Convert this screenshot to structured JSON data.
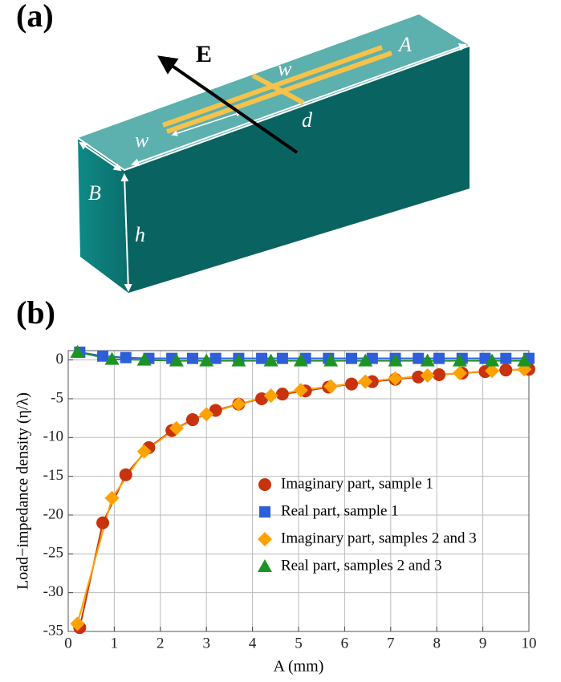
{
  "panel_a": {
    "label": "(a)",
    "labels": [
      "E",
      "A",
      "w",
      "d",
      "w",
      "B",
      "h"
    ]
  },
  "panel_b": {
    "label": "(b)"
  },
  "chart_data": {
    "type": "scatter",
    "x_label": "A (mm)",
    "y_label": "Load−impedance  density (η/λ)",
    "xlim": [
      0,
      10
    ],
    "ylim": [
      -35,
      1.2
    ],
    "xticks": [
      0,
      1,
      2,
      3,
      4,
      5,
      6,
      7,
      8,
      9,
      10
    ],
    "yticks": [
      -35,
      -30,
      -25,
      -20,
      -15,
      -10,
      -5,
      0
    ],
    "grid": true,
    "legend": "right",
    "series": [
      {
        "name": "Imaginary part, sample 1",
        "color": "#c8320c",
        "marker": "circle",
        "x": [
          0.25,
          0.75,
          1.25,
          1.75,
          2.25,
          2.7,
          3.2,
          3.7,
          4.2,
          4.65,
          5.15,
          5.65,
          6.15,
          6.6,
          7.1,
          7.6,
          8.05,
          8.55,
          9.05,
          9.5,
          10
        ],
        "values": [
          -34.5,
          -21,
          -14.8,
          -11.3,
          -9.1,
          -7.7,
          -6.5,
          -5.7,
          -5.0,
          -4.4,
          -4.0,
          -3.5,
          -3.1,
          -2.8,
          -2.5,
          -2.2,
          -1.9,
          -1.7,
          -1.5,
          -1.3,
          -1.2
        ]
      },
      {
        "name": "Real part, sample 1",
        "color": "#2f5fd8",
        "marker": "square",
        "x": [
          0.25,
          0.75,
          1.25,
          1.75,
          2.25,
          2.7,
          3.2,
          3.7,
          4.2,
          4.65,
          5.15,
          5.65,
          6.15,
          6.6,
          7.1,
          7.6,
          8.05,
          8.55,
          9.05,
          9.5,
          10
        ],
        "values": [
          1.0,
          0.5,
          0.3,
          0.2,
          0.2,
          0.2,
          0.2,
          0.2,
          0.2,
          0.2,
          0.2,
          0.2,
          0.2,
          0.2,
          0.2,
          0.2,
          0.2,
          0.2,
          0.2,
          0.2,
          0.2
        ]
      },
      {
        "name": "Imaginary part, samples 2 and 3",
        "color": "#ffa200",
        "marker": "diamond",
        "x": [
          0.2,
          0.95,
          1.65,
          2.35,
          3.0,
          3.7,
          4.4,
          5.05,
          5.7,
          6.45,
          7.1,
          7.8,
          8.5,
          9.2,
          9.9
        ],
        "values": [
          -34,
          -17.8,
          -11.8,
          -8.8,
          -7.0,
          -5.7,
          -4.6,
          -3.9,
          -3.4,
          -2.8,
          -2.4,
          -2.0,
          -1.7,
          -1.4,
          -1.2
        ]
      },
      {
        "name": "Real part, samples 2 and 3",
        "color": "#1c9424",
        "marker": "triangle",
        "x": [
          0.2,
          0.95,
          1.65,
          2.35,
          3.0,
          3.7,
          4.4,
          5.05,
          5.7,
          6.45,
          7.1,
          7.8,
          8.5,
          9.2,
          9.9
        ],
        "values": [
          1.0,
          0.1,
          0.0,
          -0.1,
          -0.1,
          -0.1,
          -0.1,
          -0.1,
          -0.1,
          -0.1,
          -0.1,
          -0.1,
          -0.1,
          -0.1,
          -0.1
        ]
      }
    ]
  }
}
